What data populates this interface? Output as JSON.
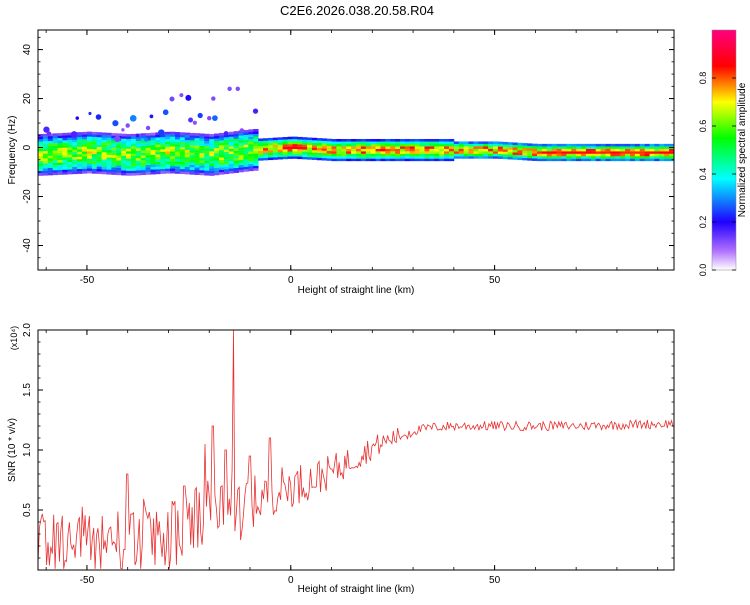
{
  "title": "C2E6.2026.038.20.58.R04",
  "chart_data": [
    {
      "type": "heatmap",
      "xlabel": "Height of straight line (km)",
      "ylabel": "Frequency (Hz)",
      "xlim": [
        -62,
        94
      ],
      "ylim": [
        -50,
        48
      ],
      "xticks": [
        -50,
        0,
        50
      ],
      "yticks": [
        -40,
        -20,
        0,
        20,
        40
      ],
      "ridge": [
        {
          "x": -62,
          "f": -3
        },
        {
          "x": -50,
          "f": -2
        },
        {
          "x": -40,
          "f": -3
        },
        {
          "x": -30,
          "f": -2
        },
        {
          "x": -20,
          "f": -3
        },
        {
          "x": -10,
          "f": -1
        },
        {
          "x": 0,
          "f": 0
        },
        {
          "x": 10,
          "f": -1
        },
        {
          "x": 20,
          "f": -1
        },
        {
          "x": 30,
          "f": -1
        },
        {
          "x": 40,
          "f": -1
        },
        {
          "x": 50,
          "f": -1
        },
        {
          "x": 60,
          "f": -2
        },
        {
          "x": 70,
          "f": -2
        },
        {
          "x": 80,
          "f": -2
        },
        {
          "x": 94,
          "f": -2
        }
      ],
      "colorbar": {
        "label": "Normalized spectral amplitude",
        "range": [
          0,
          1
        ],
        "ticks": [
          "0.0",
          "0.2",
          "0.4",
          "0.6",
          "0.8"
        ],
        "colors": [
          "#ffffff",
          "#b070ff",
          "#2000ff",
          "#00ffff",
          "#00ff00",
          "#ffff00",
          "#ff0000",
          "#ff0080"
        ]
      }
    },
    {
      "type": "line",
      "xlabel": "Height of straight line (km)",
      "ylabel": "SNR (10 * v/v)",
      "multiplier": "(x10⁴)",
      "xlim": [
        -62,
        94
      ],
      "ylim": [
        0,
        2.0
      ],
      "xticks": [
        -50,
        0,
        50
      ],
      "yticks": [
        "0.5",
        "1.0",
        "1.5",
        "2.0"
      ],
      "series": [
        {
          "color": "#e83030",
          "envelope": [
            {
              "x": -62,
              "y": 0.25
            },
            {
              "x": -50,
              "y": 0.25
            },
            {
              "x": -40,
              "y": 0.25
            },
            {
              "x": -30,
              "y": 0.28
            },
            {
              "x": -25,
              "y": 0.35
            },
            {
              "x": -20,
              "y": 0.45
            },
            {
              "x": -15,
              "y": 0.5
            },
            {
              "x": -10,
              "y": 0.55
            },
            {
              "x": -5,
              "y": 0.65
            },
            {
              "x": 0,
              "y": 0.7
            },
            {
              "x": 5,
              "y": 0.75
            },
            {
              "x": 10,
              "y": 0.82
            },
            {
              "x": 15,
              "y": 0.92
            },
            {
              "x": 20,
              "y": 1.02
            },
            {
              "x": 25,
              "y": 1.1
            },
            {
              "x": 30,
              "y": 1.16
            },
            {
              "x": 35,
              "y": 1.19
            },
            {
              "x": 40,
              "y": 1.2
            },
            {
              "x": 50,
              "y": 1.2
            },
            {
              "x": 60,
              "y": 1.2
            },
            {
              "x": 70,
              "y": 1.2
            },
            {
              "x": 80,
              "y": 1.21
            },
            {
              "x": 94,
              "y": 1.22
            }
          ],
          "peaks": [
            {
              "x": -14,
              "y": 2.0
            },
            {
              "x": -19,
              "y": 1.2
            },
            {
              "x": -16,
              "y": 1.0
            },
            {
              "x": -21,
              "y": 1.05
            },
            {
              "x": -40,
              "y": 0.8
            },
            {
              "x": -26,
              "y": 0.7
            },
            {
              "x": -10,
              "y": 0.95
            },
            {
              "x": -5,
              "y": 1.1
            }
          ]
        }
      ]
    }
  ]
}
